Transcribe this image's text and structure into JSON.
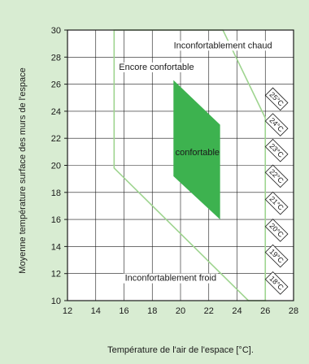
{
  "chart_data": {
    "type": "area",
    "title": "",
    "xlabel": "Température de l'air de l'espace [°C].",
    "ylabel": "Moyenne température surface des murs de l'espace",
    "xlim": [
      12,
      28
    ],
    "ylim": [
      10,
      30
    ],
    "x_ticks": [
      12,
      14,
      16,
      18,
      20,
      22,
      24,
      26,
      28
    ],
    "y_ticks": [
      10,
      12,
      14,
      16,
      18,
      20,
      22,
      24,
      26,
      28,
      30
    ],
    "grid": true,
    "regions": [
      {
        "name": "confortable",
        "label": "confortable",
        "color": "#3db24f",
        "polygon": [
          [
            19.5,
            26.3
          ],
          [
            22.8,
            23.0
          ],
          [
            22.8,
            16.0
          ],
          [
            19.5,
            19.2
          ]
        ]
      },
      {
        "name": "encore-confortable",
        "label": "Encore confortable",
        "color": "#9ed48f",
        "polygon": [
          [
            15.3,
            30.0
          ],
          [
            15.3,
            19.8
          ],
          [
            24.8,
            10.0
          ],
          [
            26.0,
            10.0
          ],
          [
            26.0,
            23.5
          ],
          [
            23.0,
            30.0
          ]
        ]
      }
    ],
    "annotations": [
      {
        "name": "uncomfortable-hot",
        "text": "Inconfortablement chaud",
        "x": 23.0,
        "y": 28.9
      },
      {
        "name": "still-comfortable",
        "text": "Encore confortable",
        "x": 18.3,
        "y": 27.3
      },
      {
        "name": "comfortable",
        "text": "confortable",
        "x": 21.2,
        "y": 21.0
      },
      {
        "name": "uncomfortable-cold",
        "text": "Inconfortablement froid",
        "x": 19.3,
        "y": 11.7
      }
    ],
    "isotherm_labels": [
      {
        "text": "25°C",
        "x": 26.8,
        "y": 24.9
      },
      {
        "text": "24°C",
        "x": 26.8,
        "y": 23.0
      },
      {
        "text": "23°C",
        "x": 26.8,
        "y": 21.1
      },
      {
        "text": "22°C",
        "x": 26.8,
        "y": 19.2
      },
      {
        "text": "21°C",
        "x": 26.8,
        "y": 17.2
      },
      {
        "text": "20°C",
        "x": 26.8,
        "y": 15.2
      },
      {
        "text": "19°C",
        "x": 26.8,
        "y": 13.3
      },
      {
        "text": "18°C",
        "x": 26.8,
        "y": 11.3
      }
    ],
    "colors": {
      "background": "#d8ecd2",
      "grid": "#1a1a1a",
      "comfort": "#3db24f",
      "boundary": "#9ed48f"
    }
  }
}
